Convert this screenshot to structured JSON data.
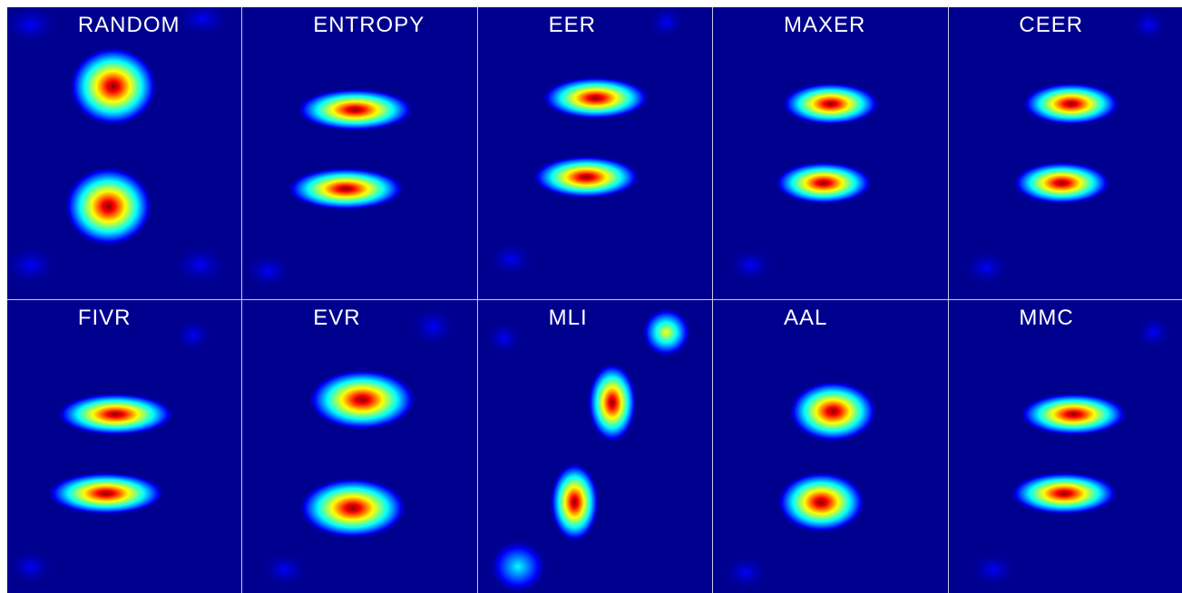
{
  "colormap": "jet",
  "colors": {
    "background": "#00008f",
    "divider": "#c8c8e6",
    "title": "#ffffff"
  },
  "chart_data": {
    "type": "heatmap",
    "layout": {
      "rows": 2,
      "cols": 5
    },
    "colormap": "jet",
    "grid": false,
    "panels": [
      {
        "title": "RANDOM",
        "blobs": [
          {
            "x": 0.45,
            "y": 0.27,
            "sx": 0.09,
            "sy": 0.065,
            "a": 1.0
          },
          {
            "x": 0.43,
            "y": 0.68,
            "sx": 0.09,
            "sy": 0.065,
            "a": 1.0
          },
          {
            "x": 0.1,
            "y": 0.06,
            "sx": 0.06,
            "sy": 0.035,
            "a": 0.35
          },
          {
            "x": 0.83,
            "y": 0.04,
            "sx": 0.06,
            "sy": 0.03,
            "a": 0.25
          },
          {
            "x": 0.1,
            "y": 0.88,
            "sx": 0.06,
            "sy": 0.035,
            "a": 0.35
          },
          {
            "x": 0.82,
            "y": 0.88,
            "sx": 0.06,
            "sy": 0.035,
            "a": 0.35
          }
        ]
      },
      {
        "title": "ENTROPY",
        "blobs": [
          {
            "x": 0.48,
            "y": 0.35,
            "sx": 0.12,
            "sy": 0.035,
            "a": 1.0
          },
          {
            "x": 0.44,
            "y": 0.62,
            "sx": 0.12,
            "sy": 0.035,
            "a": 1.0
          },
          {
            "x": 0.11,
            "y": 0.9,
            "sx": 0.05,
            "sy": 0.03,
            "a": 0.2
          },
          {
            "x": 0.85,
            "y": 0.06,
            "sx": 0.05,
            "sy": 0.03,
            "a": 0.1
          }
        ]
      },
      {
        "title": "EER",
        "blobs": [
          {
            "x": 0.5,
            "y": 0.31,
            "sx": 0.11,
            "sy": 0.035,
            "a": 1.0
          },
          {
            "x": 0.46,
            "y": 0.58,
            "sx": 0.11,
            "sy": 0.035,
            "a": 1.0
          },
          {
            "x": 0.14,
            "y": 0.86,
            "sx": 0.05,
            "sy": 0.03,
            "a": 0.2
          },
          {
            "x": 0.8,
            "y": 0.05,
            "sx": 0.04,
            "sy": 0.03,
            "a": 0.15
          }
        ]
      },
      {
        "title": "MAXER",
        "blobs": [
          {
            "x": 0.5,
            "y": 0.33,
            "sx": 0.1,
            "sy": 0.035,
            "a": 1.0
          },
          {
            "x": 0.47,
            "y": 0.6,
            "sx": 0.1,
            "sy": 0.035,
            "a": 1.0
          },
          {
            "x": 0.16,
            "y": 0.88,
            "sx": 0.05,
            "sy": 0.03,
            "a": 0.15
          },
          {
            "x": 0.85,
            "y": 0.88,
            "sx": 0.05,
            "sy": 0.03,
            "a": 0.1
          }
        ]
      },
      {
        "title": "CEER",
        "blobs": [
          {
            "x": 0.52,
            "y": 0.33,
            "sx": 0.1,
            "sy": 0.035,
            "a": 1.0
          },
          {
            "x": 0.48,
            "y": 0.6,
            "sx": 0.1,
            "sy": 0.035,
            "a": 1.0
          },
          {
            "x": 0.16,
            "y": 0.89,
            "sx": 0.05,
            "sy": 0.03,
            "a": 0.15
          },
          {
            "x": 0.85,
            "y": 0.06,
            "sx": 0.04,
            "sy": 0.03,
            "a": 0.12
          }
        ]
      },
      {
        "title": "FIVR",
        "blobs": [
          {
            "x": 0.46,
            "y": 0.39,
            "sx": 0.12,
            "sy": 0.035,
            "a": 1.0
          },
          {
            "x": 0.42,
            "y": 0.66,
            "sx": 0.12,
            "sy": 0.035,
            "a": 1.0
          },
          {
            "x": 0.79,
            "y": 0.12,
            "sx": 0.04,
            "sy": 0.03,
            "a": 0.2
          },
          {
            "x": 0.1,
            "y": 0.91,
            "sx": 0.05,
            "sy": 0.03,
            "a": 0.15
          }
        ]
      },
      {
        "title": "EVR",
        "blobs": [
          {
            "x": 0.51,
            "y": 0.34,
            "sx": 0.11,
            "sy": 0.05,
            "a": 1.0
          },
          {
            "x": 0.47,
            "y": 0.71,
            "sx": 0.11,
            "sy": 0.05,
            "a": 1.0
          },
          {
            "x": 0.81,
            "y": 0.09,
            "sx": 0.05,
            "sy": 0.035,
            "a": 0.25
          },
          {
            "x": 0.18,
            "y": 0.92,
            "sx": 0.05,
            "sy": 0.03,
            "a": 0.25
          }
        ]
      },
      {
        "title": "MLI",
        "blobs": [
          {
            "x": 0.57,
            "y": 0.35,
            "sx": 0.05,
            "sy": 0.065,
            "a": 1.0
          },
          {
            "x": 0.41,
            "y": 0.69,
            "sx": 0.05,
            "sy": 0.065,
            "a": 1.0
          },
          {
            "x": 0.8,
            "y": 0.11,
            "sx": 0.05,
            "sy": 0.04,
            "a": 0.8
          },
          {
            "x": 0.17,
            "y": 0.91,
            "sx": 0.06,
            "sy": 0.045,
            "a": 0.6
          },
          {
            "x": 0.11,
            "y": 0.13,
            "sx": 0.04,
            "sy": 0.03,
            "a": 0.15
          }
        ]
      },
      {
        "title": "AAL",
        "blobs": [
          {
            "x": 0.51,
            "y": 0.38,
            "sx": 0.09,
            "sy": 0.05,
            "a": 1.0
          },
          {
            "x": 0.46,
            "y": 0.69,
            "sx": 0.09,
            "sy": 0.05,
            "a": 1.0
          },
          {
            "x": 0.86,
            "y": 0.1,
            "sx": 0.04,
            "sy": 0.03,
            "a": 0.1
          },
          {
            "x": 0.14,
            "y": 0.93,
            "sx": 0.05,
            "sy": 0.03,
            "a": 0.15
          }
        ]
      },
      {
        "title": "MMC",
        "blobs": [
          {
            "x": 0.53,
            "y": 0.39,
            "sx": 0.11,
            "sy": 0.035,
            "a": 1.0
          },
          {
            "x": 0.49,
            "y": 0.66,
            "sx": 0.11,
            "sy": 0.035,
            "a": 1.0
          },
          {
            "x": 0.87,
            "y": 0.11,
            "sx": 0.04,
            "sy": 0.03,
            "a": 0.2
          },
          {
            "x": 0.19,
            "y": 0.92,
            "sx": 0.05,
            "sy": 0.03,
            "a": 0.2
          }
        ]
      }
    ]
  }
}
